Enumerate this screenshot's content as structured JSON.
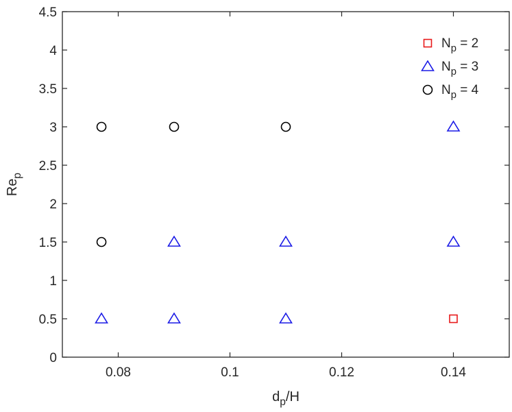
{
  "chart_data": {
    "type": "scatter",
    "xlabel": {
      "main": "d",
      "sub": "p",
      "rest": "/H"
    },
    "ylabel": {
      "main": "Re",
      "sub": "p"
    },
    "xlim": [
      0.07,
      0.15
    ],
    "ylim": [
      0,
      4.5
    ],
    "xticks": [
      {
        "value": 0.08,
        "label": "0.08"
      },
      {
        "value": 0.1,
        "label": "0.1"
      },
      {
        "value": 0.12,
        "label": "0.12"
      },
      {
        "value": 0.14,
        "label": "0.14"
      }
    ],
    "yticks": [
      {
        "value": 0,
        "label": "0"
      },
      {
        "value": 0.5,
        "label": "0.5"
      },
      {
        "value": 1,
        "label": "1"
      },
      {
        "value": 1.5,
        "label": "1.5"
      },
      {
        "value": 2,
        "label": "2"
      },
      {
        "value": 2.5,
        "label": "2.5"
      },
      {
        "value": 3,
        "label": "3"
      },
      {
        "value": 3.5,
        "label": "3.5"
      },
      {
        "value": 4,
        "label": "4"
      },
      {
        "value": 4.5,
        "label": "4.5"
      }
    ],
    "grid": false,
    "legend_position": "top-right",
    "series": [
      {
        "label": {
          "main": "N",
          "sub": "p",
          "rest": " = 2"
        },
        "marker": "square",
        "color": "#e8191a",
        "points": [
          {
            "x": 0.14,
            "y": 0.5
          }
        ]
      },
      {
        "label": {
          "main": "N",
          "sub": "p",
          "rest": " = 3"
        },
        "marker": "triangle",
        "color": "#1a1ae6",
        "points": [
          {
            "x": 0.077,
            "y": 0.5
          },
          {
            "x": 0.09,
            "y": 0.5
          },
          {
            "x": 0.11,
            "y": 0.5
          },
          {
            "x": 0.09,
            "y": 1.5
          },
          {
            "x": 0.11,
            "y": 1.5
          },
          {
            "x": 0.14,
            "y": 1.5
          },
          {
            "x": 0.14,
            "y": 3
          }
        ]
      },
      {
        "label": {
          "main": "N",
          "sub": "p",
          "rest": " = 4"
        },
        "marker": "circle",
        "color": "#000000",
        "points": [
          {
            "x": 0.077,
            "y": 1.5
          },
          {
            "x": 0.077,
            "y": 3
          },
          {
            "x": 0.09,
            "y": 3
          },
          {
            "x": 0.11,
            "y": 3
          }
        ]
      }
    ]
  }
}
